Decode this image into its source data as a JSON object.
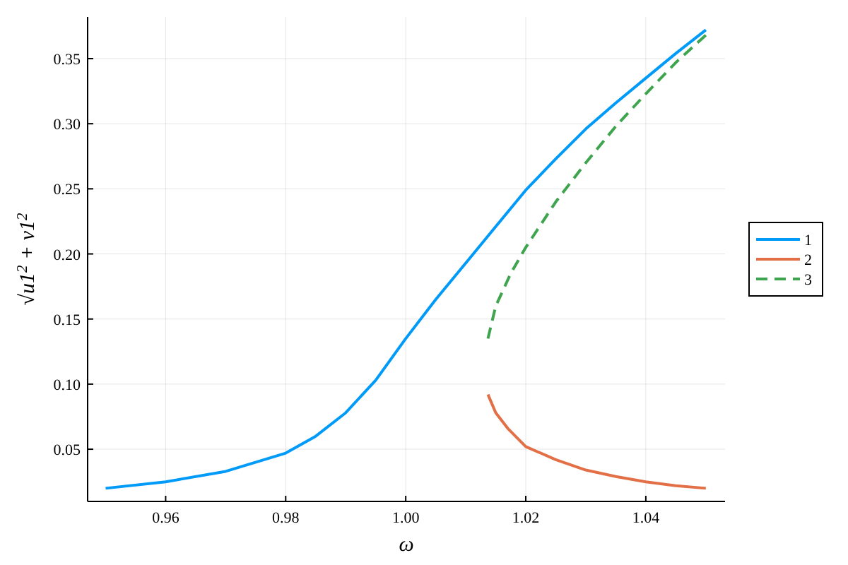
{
  "chart_data": {
    "type": "line",
    "xlabel": "ω",
    "ylabel": "√u1$^{2}$ + v1$^{2}$",
    "xlim": [
      0.947,
      1.0532
    ],
    "xticks": [
      {
        "value": 0.96,
        "label": "0.96"
      },
      {
        "value": 0.98,
        "label": "0.98"
      },
      {
        "value": 1.0,
        "label": "1.00"
      },
      {
        "value": 1.02,
        "label": "1.02"
      },
      {
        "value": 1.04,
        "label": "1.04"
      }
    ],
    "ylim": [
      0.0099,
      0.382
    ],
    "yticks": [
      {
        "value": 0.05,
        "label": "0.05"
      },
      {
        "value": 0.1,
        "label": "0.10"
      },
      {
        "value": 0.15,
        "label": "0.15"
      },
      {
        "value": 0.2,
        "label": "0.20"
      },
      {
        "value": 0.25,
        "label": "0.25"
      },
      {
        "value": 0.3,
        "label": "0.30"
      },
      {
        "value": 0.35,
        "label": "0.35"
      }
    ],
    "grid": true,
    "legend": "right",
    "series": [
      {
        "name": "1",
        "color": "#009af9",
        "line_style": "solid",
        "x": [
          0.95,
          0.96,
          0.97,
          0.98,
          0.985,
          0.99,
          0.995,
          1.0,
          1.005,
          1.01,
          1.015,
          1.02,
          1.025,
          1.03,
          1.035,
          1.04,
          1.045,
          1.05
        ],
        "values": [
          0.02,
          0.025,
          0.033,
          0.047,
          0.06,
          0.078,
          0.103,
          0.135,
          0.165,
          0.193,
          0.221,
          0.249,
          0.273,
          0.296,
          0.316,
          0.335,
          0.354,
          0.372
        ]
      },
      {
        "name": "2",
        "color": "#e26f46",
        "line_style": "solid",
        "x": [
          1.0137,
          1.015,
          1.017,
          1.02,
          1.025,
          1.03,
          1.035,
          1.04,
          1.045,
          1.05
        ],
        "values": [
          0.092,
          0.078,
          0.066,
          0.052,
          0.042,
          0.034,
          0.029,
          0.025,
          0.022,
          0.02
        ]
      },
      {
        "name": "3",
        "color": "#3ea44e",
        "line_style": "dashed",
        "x": [
          1.0137,
          1.015,
          1.0175,
          1.02,
          1.025,
          1.03,
          1.035,
          1.04,
          1.045,
          1.05
        ],
        "values": [
          0.135,
          0.16,
          0.185,
          0.205,
          0.24,
          0.27,
          0.298,
          0.323,
          0.347,
          0.368
        ]
      }
    ]
  }
}
